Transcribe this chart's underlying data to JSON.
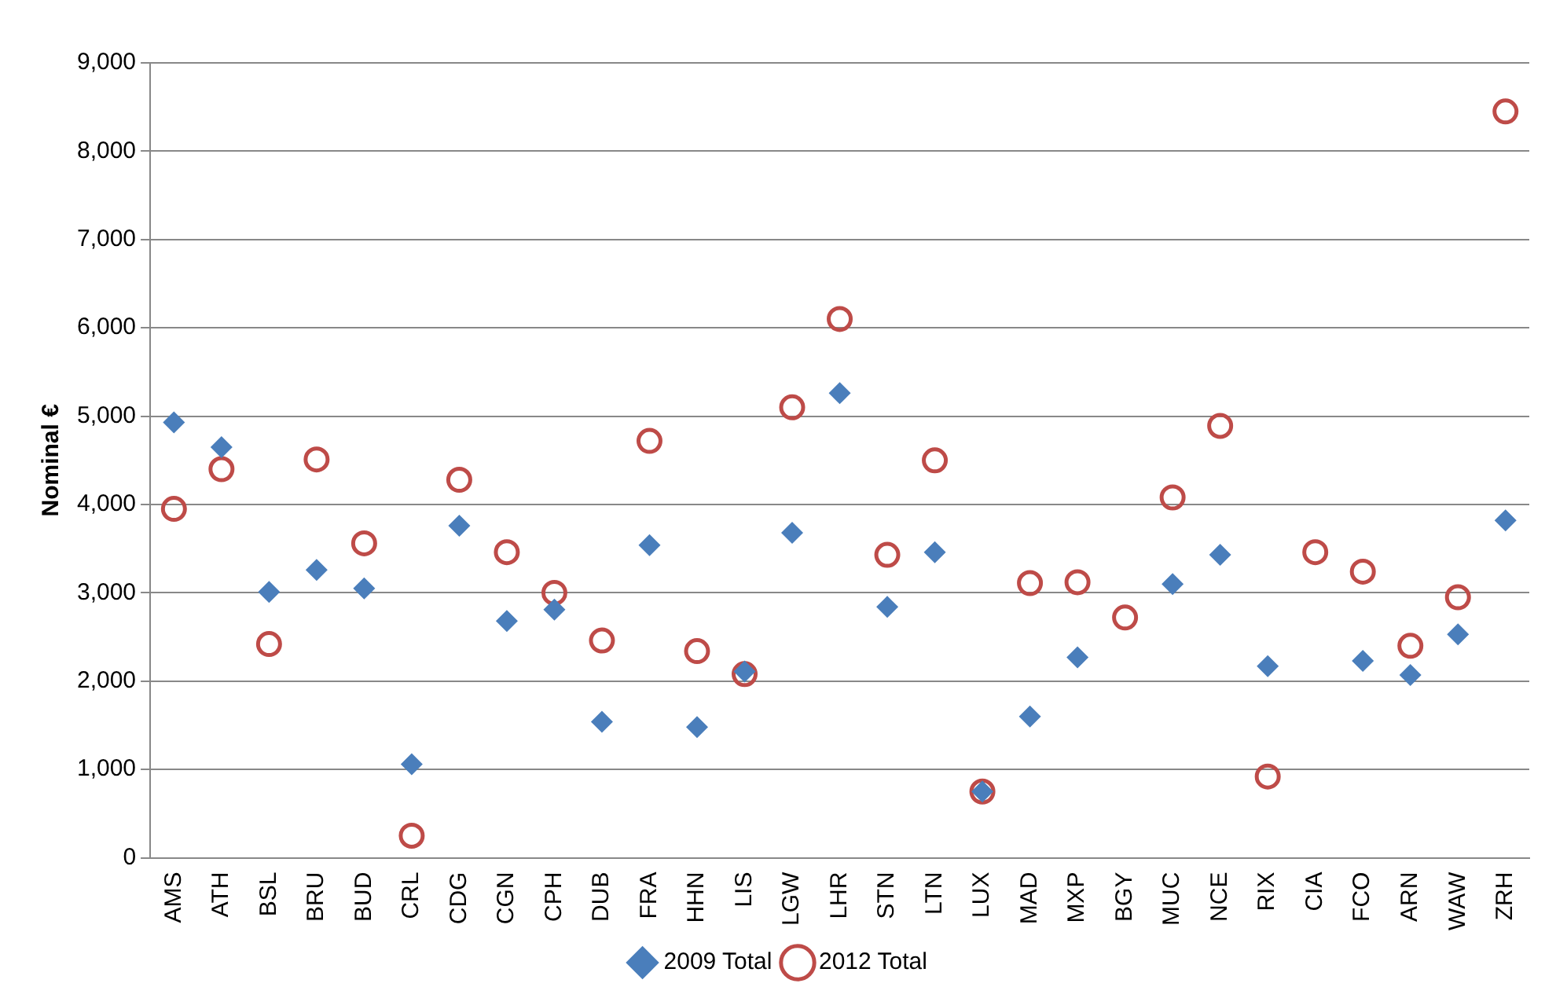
{
  "chart_data": {
    "type": "scatter",
    "ylabel": "Nominal €",
    "categories": [
      "AMS",
      "ATH",
      "BSL",
      "BRU",
      "BUD",
      "CRL",
      "CDG",
      "CGN",
      "CPH",
      "DUB",
      "FRA",
      "HHN",
      "LIS",
      "LGW",
      "LHR",
      "STN",
      "LTN",
      "LUX",
      "MAD",
      "MXP",
      "BGY",
      "MUC",
      "NCE",
      "RIX",
      "CIA",
      "FCO",
      "ARN",
      "WAW",
      "ZRH"
    ],
    "series": [
      {
        "name": "2009 Total",
        "color": "#4a7ebb",
        "marker": "diamond",
        "values": [
          4930,
          4650,
          3010,
          3260,
          3050,
          1060,
          3760,
          2680,
          2810,
          1540,
          3540,
          1480,
          2110,
          3680,
          5260,
          2840,
          3460,
          750,
          1600,
          2270,
          null,
          3100,
          3430,
          2170,
          null,
          2230,
          2070,
          2530,
          3820
        ]
      },
      {
        "name": "2012 Total",
        "color": "#be4b48",
        "marker": "circle",
        "values": [
          3950,
          4400,
          2420,
          4510,
          3560,
          250,
          4280,
          3460,
          3000,
          2460,
          4720,
          2340,
          2080,
          5100,
          6100,
          3430,
          4500,
          750,
          3110,
          3120,
          2720,
          4080,
          4890,
          920,
          3460,
          3240,
          2400,
          2950,
          8450
        ]
      }
    ],
    "ylim": [
      0,
      9000
    ],
    "yticks": [
      0,
      {
        "value": 1000,
        "label": "1,000"
      },
      {
        "value": 2000,
        "label": "2,000"
      },
      {
        "value": 3000,
        "label": "3,000"
      },
      {
        "value": 4000,
        "label": "4,000"
      },
      {
        "value": 5000,
        "label": "5,000"
      },
      {
        "value": 6000,
        "label": "6,000"
      },
      {
        "value": 7000,
        "label": "7,000"
      },
      {
        "value": 8000,
        "label": "8,000"
      },
      {
        "value": 9000,
        "label": "9,000"
      }
    ],
    "grid": "y",
    "legend": "bottom"
  }
}
